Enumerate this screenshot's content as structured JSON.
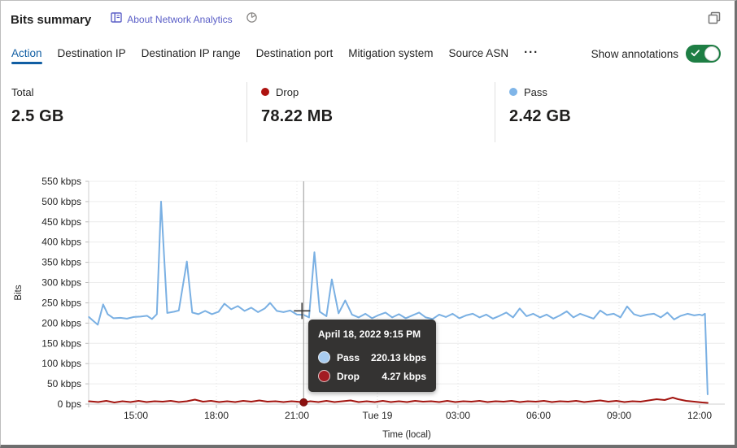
{
  "header": {
    "title": "Bits summary",
    "about_link": "About Network Analytics",
    "icons": {
      "book": "book-icon",
      "pie": "pie-chart-icon",
      "restore": "restore-window-icon"
    }
  },
  "tabs": {
    "items": [
      {
        "label": "Action",
        "active": true
      },
      {
        "label": "Destination IP",
        "active": false
      },
      {
        "label": "Destination IP range",
        "active": false
      },
      {
        "label": "Destination port",
        "active": false
      },
      {
        "label": "Mitigation system",
        "active": false
      },
      {
        "label": "Source ASN",
        "active": false
      }
    ],
    "more_label": "···"
  },
  "annotations_toggle": {
    "label": "Show annotations",
    "state": "on",
    "color": "#1e7e44"
  },
  "stats": [
    {
      "label": "Total",
      "value": "2.5 GB"
    },
    {
      "label": "Drop",
      "value": "78.22 MB",
      "dot_color": "#ae1310"
    },
    {
      "label": "Pass",
      "value": "2.42 GB",
      "dot_color": "#7fb5e8"
    }
  ],
  "chart_data": {
    "type": "line",
    "ylabel": "Bits",
    "xlabel": "Time (local)",
    "ylim": [
      0,
      550
    ],
    "xlim": [
      13.242,
      36.939
    ],
    "y_ticks": [
      {
        "label": "550 kbps",
        "value": 550
      },
      {
        "label": "500 kbps",
        "value": 500
      },
      {
        "label": "450 kbps",
        "value": 450
      },
      {
        "label": "400 kbps",
        "value": 400
      },
      {
        "label": "350 kbps",
        "value": 350
      },
      {
        "label": "300 kbps",
        "value": 300
      },
      {
        "label": "250 kbps",
        "value": 250
      },
      {
        "label": "200 kbps",
        "value": 200
      },
      {
        "label": "150 kbps",
        "value": 150
      },
      {
        "label": "100 kbps",
        "value": 100
      },
      {
        "label": "50 kbps",
        "value": 50
      },
      {
        "label": "0 bps",
        "value": 0
      }
    ],
    "x_ticks": [
      {
        "label": "15:00",
        "t": 15
      },
      {
        "label": "18:00",
        "t": 18
      },
      {
        "label": "21:00",
        "t": 21
      },
      {
        "label": "Tue 19",
        "t": 24
      },
      {
        "label": "03:00",
        "t": 27
      },
      {
        "label": "06:00",
        "t": 30
      },
      {
        "label": "09:00",
        "t": 33
      },
      {
        "label": "12:00",
        "t": 36
      }
    ],
    "series": [
      {
        "name": "Pass",
        "color": "#7ab0e3",
        "points": [
          [
            13.25,
            215
          ],
          [
            13.42,
            205
          ],
          [
            13.58,
            196
          ],
          [
            13.78,
            246
          ],
          [
            13.95,
            222
          ],
          [
            14.17,
            212
          ],
          [
            14.42,
            213
          ],
          [
            14.67,
            211
          ],
          [
            14.92,
            215
          ],
          [
            15.17,
            216
          ],
          [
            15.42,
            218
          ],
          [
            15.6,
            210
          ],
          [
            15.78,
            222
          ],
          [
            15.94,
            500
          ],
          [
            16.17,
            225
          ],
          [
            16.42,
            228
          ],
          [
            16.6,
            231
          ],
          [
            16.9,
            352
          ],
          [
            17.1,
            226
          ],
          [
            17.33,
            222
          ],
          [
            17.58,
            230
          ],
          [
            17.83,
            222
          ],
          [
            18.08,
            228
          ],
          [
            18.3,
            248
          ],
          [
            18.55,
            234
          ],
          [
            18.8,
            242
          ],
          [
            19.05,
            230
          ],
          [
            19.3,
            238
          ],
          [
            19.55,
            227
          ],
          [
            19.8,
            236
          ],
          [
            20.0,
            250
          ],
          [
            20.25,
            230
          ],
          [
            20.5,
            227
          ],
          [
            20.75,
            231
          ],
          [
            21.0,
            221
          ],
          [
            21.25,
            220.13
          ],
          [
            21.45,
            214
          ],
          [
            21.65,
            375
          ],
          [
            21.85,
            228
          ],
          [
            22.1,
            217
          ],
          [
            22.3,
            308
          ],
          [
            22.55,
            224
          ],
          [
            22.8,
            256
          ],
          [
            23.05,
            221
          ],
          [
            23.3,
            214
          ],
          [
            23.55,
            223
          ],
          [
            23.8,
            212
          ],
          [
            24.05,
            220
          ],
          [
            24.3,
            226
          ],
          [
            24.55,
            214
          ],
          [
            24.8,
            222
          ],
          [
            25.05,
            212
          ],
          [
            25.3,
            219
          ],
          [
            25.55,
            226
          ],
          [
            25.8,
            214
          ],
          [
            26.05,
            210
          ],
          [
            26.3,
            221
          ],
          [
            26.55,
            215
          ],
          [
            26.8,
            223
          ],
          [
            27.05,
            212
          ],
          [
            27.3,
            219
          ],
          [
            27.55,
            223
          ],
          [
            27.8,
            214
          ],
          [
            28.05,
            221
          ],
          [
            28.3,
            211
          ],
          [
            28.55,
            218
          ],
          [
            28.8,
            226
          ],
          [
            29.05,
            214
          ],
          [
            29.3,
            236
          ],
          [
            29.55,
            217
          ],
          [
            29.8,
            223
          ],
          [
            30.05,
            214
          ],
          [
            30.3,
            221
          ],
          [
            30.55,
            211
          ],
          [
            30.8,
            219
          ],
          [
            31.05,
            229
          ],
          [
            31.3,
            214
          ],
          [
            31.55,
            223
          ],
          [
            31.8,
            217
          ],
          [
            32.05,
            211
          ],
          [
            32.3,
            231
          ],
          [
            32.55,
            220
          ],
          [
            32.8,
            223
          ],
          [
            33.05,
            214
          ],
          [
            33.3,
            241
          ],
          [
            33.55,
            222
          ],
          [
            33.8,
            217
          ],
          [
            34.05,
            221
          ],
          [
            34.3,
            223
          ],
          [
            34.55,
            214
          ],
          [
            34.8,
            226
          ],
          [
            35.05,
            209
          ],
          [
            35.3,
            218
          ],
          [
            35.55,
            223
          ],
          [
            35.8,
            219
          ],
          [
            36.0,
            221
          ],
          [
            36.1,
            219
          ],
          [
            36.2,
            223
          ],
          [
            36.3,
            24
          ]
        ]
      },
      {
        "name": "Drop",
        "color": "#a31510",
        "points": [
          [
            13.25,
            7
          ],
          [
            13.6,
            5
          ],
          [
            13.9,
            8
          ],
          [
            14.2,
            4
          ],
          [
            14.5,
            7
          ],
          [
            14.8,
            5
          ],
          [
            15.1,
            8
          ],
          [
            15.4,
            5
          ],
          [
            15.7,
            7
          ],
          [
            16.0,
            6
          ],
          [
            16.3,
            8
          ],
          [
            16.6,
            5
          ],
          [
            16.9,
            7
          ],
          [
            17.2,
            11
          ],
          [
            17.5,
            6
          ],
          [
            17.8,
            8
          ],
          [
            18.1,
            5
          ],
          [
            18.4,
            7
          ],
          [
            18.7,
            5
          ],
          [
            19.0,
            8
          ],
          [
            19.3,
            6
          ],
          [
            19.6,
            9
          ],
          [
            19.9,
            6
          ],
          [
            20.2,
            7
          ],
          [
            20.5,
            5
          ],
          [
            20.8,
            7
          ],
          [
            21.0,
            6
          ],
          [
            21.25,
            4.27
          ],
          [
            21.5,
            7
          ],
          [
            21.8,
            5
          ],
          [
            22.1,
            8
          ],
          [
            22.4,
            5
          ],
          [
            22.7,
            7
          ],
          [
            23.0,
            9
          ],
          [
            23.3,
            5
          ],
          [
            23.6,
            7
          ],
          [
            23.9,
            5
          ],
          [
            24.2,
            8
          ],
          [
            24.5,
            5
          ],
          [
            24.8,
            7
          ],
          [
            25.1,
            5
          ],
          [
            25.4,
            8
          ],
          [
            25.7,
            6
          ],
          [
            26.0,
            7
          ],
          [
            26.3,
            5
          ],
          [
            26.6,
            8
          ],
          [
            26.9,
            5
          ],
          [
            27.2,
            7
          ],
          [
            27.5,
            6
          ],
          [
            27.8,
            8
          ],
          [
            28.1,
            5
          ],
          [
            28.4,
            7
          ],
          [
            28.7,
            6
          ],
          [
            29.0,
            8
          ],
          [
            29.3,
            5
          ],
          [
            29.6,
            7
          ],
          [
            29.9,
            6
          ],
          [
            30.2,
            8
          ],
          [
            30.5,
            5
          ],
          [
            30.8,
            7
          ],
          [
            31.1,
            6
          ],
          [
            31.4,
            8
          ],
          [
            31.7,
            5
          ],
          [
            32.0,
            7
          ],
          [
            32.3,
            9
          ],
          [
            32.6,
            6
          ],
          [
            32.9,
            8
          ],
          [
            33.2,
            5
          ],
          [
            33.5,
            7
          ],
          [
            33.8,
            6
          ],
          [
            34.1,
            9
          ],
          [
            34.4,
            12
          ],
          [
            34.7,
            10
          ],
          [
            35.0,
            16
          ],
          [
            35.2,
            12
          ],
          [
            35.5,
            8
          ],
          [
            35.8,
            6
          ],
          [
            36.1,
            4
          ],
          [
            36.3,
            3
          ]
        ]
      }
    ],
    "hover": {
      "t": 21.25,
      "time_label": "April 18, 2022 9:15 PM",
      "rows": [
        {
          "name": "Pass",
          "value_kbps": 220.13,
          "value_label": "220.13 kbps",
          "dot_color": "#a8ccf0"
        },
        {
          "name": "Drop",
          "value_kbps": 4.27,
          "value_label": "4.27 kbps",
          "dot_color": "#a31b22"
        }
      ]
    },
    "legend_position": "none",
    "grid": true
  }
}
